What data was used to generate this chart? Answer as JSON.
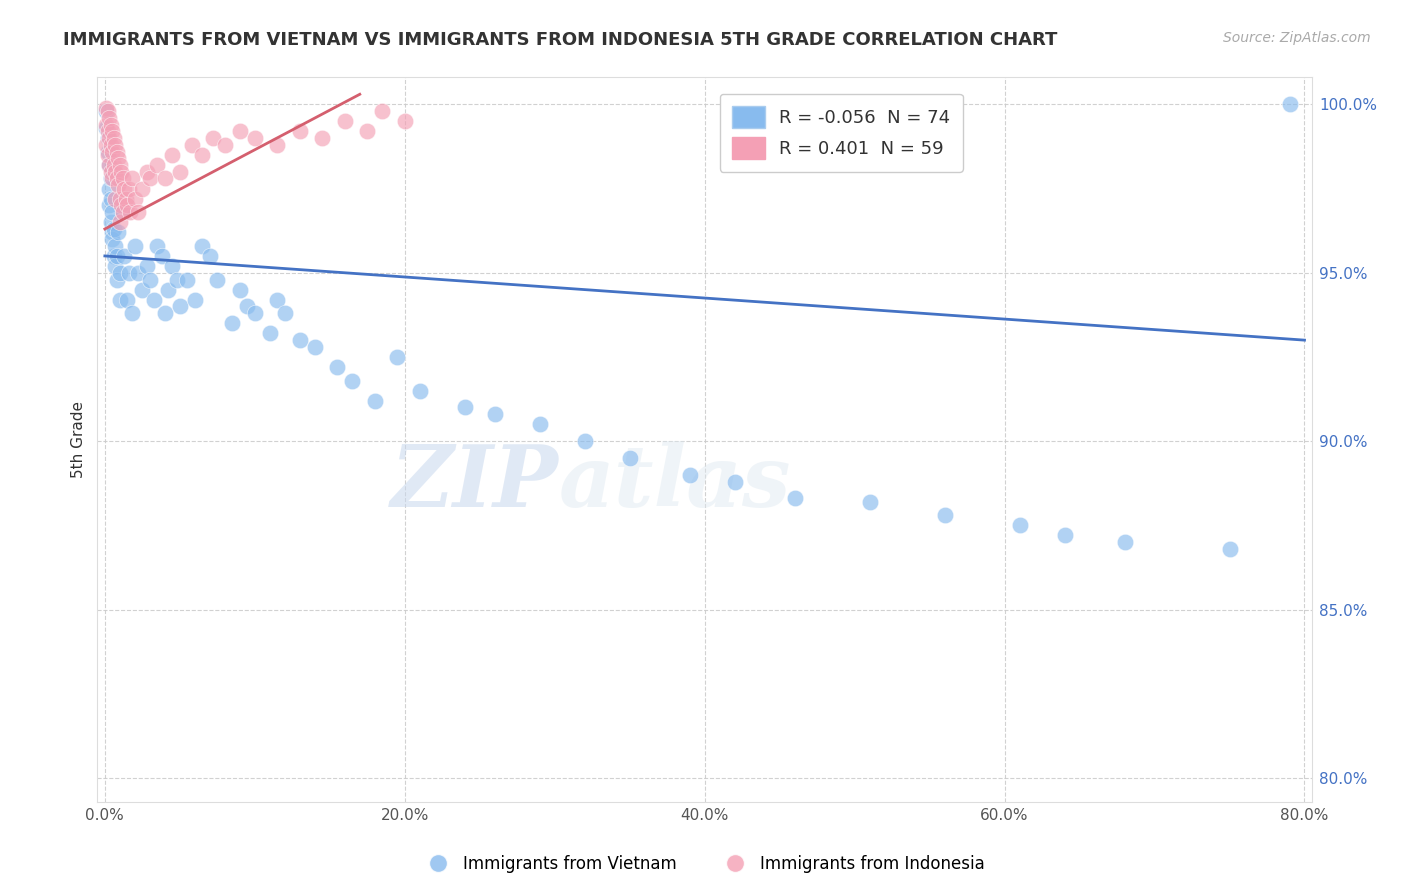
{
  "title": "IMMIGRANTS FROM VIETNAM VS IMMIGRANTS FROM INDONESIA 5TH GRADE CORRELATION CHART",
  "source": "Source: ZipAtlas.com",
  "xlabel": "",
  "ylabel": "5th Grade",
  "xlim": [
    -0.005,
    0.805
  ],
  "ylim": [
    0.793,
    1.008
  ],
  "xticks": [
    0.0,
    0.2,
    0.4,
    0.6,
    0.8
  ],
  "yticks": [
    0.8,
    0.85,
    0.9,
    0.95,
    1.0
  ],
  "xtick_labels": [
    "0.0%",
    "20.0%",
    "40.0%",
    "60.0%",
    "80.0%"
  ],
  "ytick_labels": [
    "80.0%",
    "85.0%",
    "90.0%",
    "95.0%",
    "100.0%"
  ],
  "vietnam_color": "#88bbee",
  "indonesia_color": "#f4a0b5",
  "vietnam_R": -0.056,
  "vietnam_N": 74,
  "indonesia_R": 0.401,
  "indonesia_N": 59,
  "legend_label_vietnam": "Immigrants from Vietnam",
  "legend_label_indonesia": "Immigrants from Indonesia",
  "watermark_zip": "ZIP",
  "watermark_atlas": "atlas",
  "vietnam_trendline": [
    0.0,
    0.955,
    0.8,
    0.93
  ],
  "indonesia_trendline": [
    0.0,
    0.963,
    0.17,
    1.003
  ],
  "vietnam_x": [
    0.001,
    0.001,
    0.002,
    0.002,
    0.003,
    0.003,
    0.003,
    0.004,
    0.004,
    0.004,
    0.005,
    0.005,
    0.005,
    0.006,
    0.006,
    0.007,
    0.007,
    0.008,
    0.008,
    0.009,
    0.01,
    0.01,
    0.012,
    0.013,
    0.015,
    0.016,
    0.018,
    0.02,
    0.022,
    0.025,
    0.028,
    0.03,
    0.033,
    0.035,
    0.038,
    0.04,
    0.042,
    0.045,
    0.048,
    0.05,
    0.055,
    0.06,
    0.065,
    0.07,
    0.075,
    0.085,
    0.09,
    0.095,
    0.1,
    0.11,
    0.115,
    0.12,
    0.13,
    0.14,
    0.155,
    0.165,
    0.18,
    0.195,
    0.21,
    0.24,
    0.26,
    0.29,
    0.32,
    0.35,
    0.39,
    0.42,
    0.46,
    0.51,
    0.56,
    0.61,
    0.64,
    0.68,
    0.75,
    0.79
  ],
  "vietnam_y": [
    0.998,
    0.993,
    0.99,
    0.986,
    0.975,
    0.97,
    0.982,
    0.965,
    0.972,
    0.978,
    0.962,
    0.968,
    0.96,
    0.955,
    0.963,
    0.952,
    0.958,
    0.955,
    0.948,
    0.962,
    0.95,
    0.942,
    0.968,
    0.955,
    0.942,
    0.95,
    0.938,
    0.958,
    0.95,
    0.945,
    0.952,
    0.948,
    0.942,
    0.958,
    0.955,
    0.938,
    0.945,
    0.952,
    0.948,
    0.94,
    0.948,
    0.942,
    0.958,
    0.955,
    0.948,
    0.935,
    0.945,
    0.94,
    0.938,
    0.932,
    0.942,
    0.938,
    0.93,
    0.928,
    0.922,
    0.918,
    0.912,
    0.925,
    0.915,
    0.91,
    0.908,
    0.905,
    0.9,
    0.895,
    0.89,
    0.888,
    0.883,
    0.882,
    0.878,
    0.875,
    0.872,
    0.87,
    0.868,
    1.0
  ],
  "indonesia_x": [
    0.001,
    0.001,
    0.001,
    0.002,
    0.002,
    0.002,
    0.003,
    0.003,
    0.003,
    0.004,
    0.004,
    0.004,
    0.005,
    0.005,
    0.005,
    0.006,
    0.006,
    0.007,
    0.007,
    0.007,
    0.008,
    0.008,
    0.009,
    0.009,
    0.01,
    0.01,
    0.01,
    0.011,
    0.011,
    0.012,
    0.012,
    0.013,
    0.014,
    0.015,
    0.016,
    0.017,
    0.018,
    0.02,
    0.022,
    0.025,
    0.028,
    0.03,
    0.035,
    0.04,
    0.045,
    0.05,
    0.058,
    0.065,
    0.072,
    0.08,
    0.09,
    0.1,
    0.115,
    0.13,
    0.145,
    0.16,
    0.175,
    0.185,
    0.2
  ],
  "indonesia_y": [
    0.999,
    0.994,
    0.988,
    0.998,
    0.992,
    0.985,
    0.996,
    0.99,
    0.982,
    0.994,
    0.988,
    0.98,
    0.992,
    0.986,
    0.978,
    0.99,
    0.982,
    0.988,
    0.98,
    0.972,
    0.986,
    0.978,
    0.984,
    0.976,
    0.982,
    0.972,
    0.965,
    0.98,
    0.97,
    0.978,
    0.968,
    0.975,
    0.972,
    0.97,
    0.975,
    0.968,
    0.978,
    0.972,
    0.968,
    0.975,
    0.98,
    0.978,
    0.982,
    0.978,
    0.985,
    0.98,
    0.988,
    0.985,
    0.99,
    0.988,
    0.992,
    0.99,
    0.988,
    0.992,
    0.99,
    0.995,
    0.992,
    0.998,
    0.995
  ]
}
